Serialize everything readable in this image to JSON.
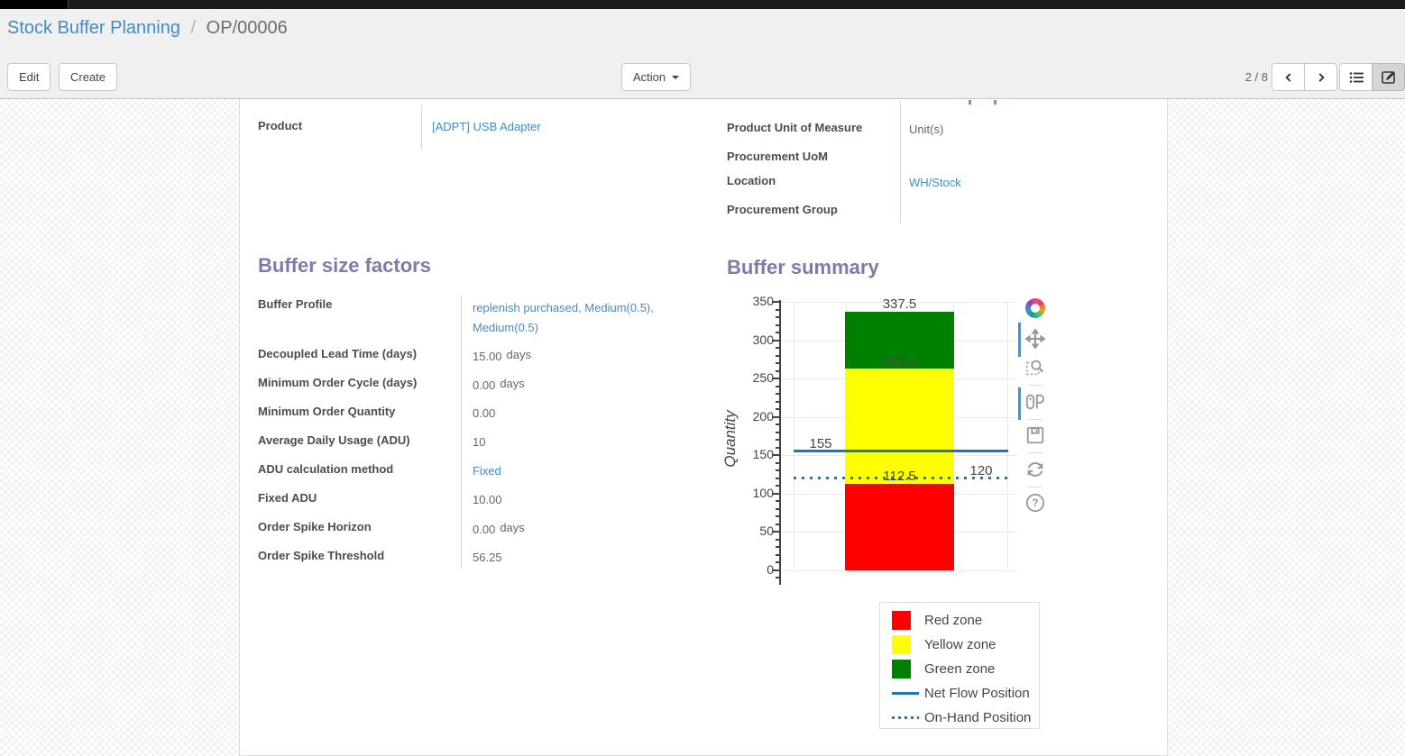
{
  "breadcrumb": {
    "parent": "Stock Buffer Planning",
    "separator": "/",
    "current": "OP/00006"
  },
  "control_panel": {
    "edit_label": "Edit",
    "create_label": "Create",
    "action_label": "Action",
    "pager": "2 / 8"
  },
  "icons": {
    "view_switcher": [
      "list-icon",
      "form-icon"
    ],
    "pager": [
      "chevron-left-icon",
      "chevron-right-icon"
    ],
    "chart_modebar": [
      "plotly-logo-icon",
      "pan-icon",
      "box-zoom-icon",
      "hover-compare-icon",
      "save-icon",
      "reset-axes-icon",
      "help-icon"
    ]
  },
  "form": {
    "left_fields": [
      {
        "label": "Product",
        "value": "[ADPT] USB Adapter"
      }
    ],
    "right_fields": [
      {
        "label": "Product Unit of Measure",
        "value": "Unit(s)"
      },
      {
        "label": "Procurement UoM",
        "value": ""
      },
      {
        "label": "Location",
        "value": "WH/Stock"
      },
      {
        "label": "Procurement Group",
        "value": ""
      }
    ],
    "buffer_factors": {
      "title": "Buffer size factors",
      "fields": [
        {
          "label": "Buffer Profile",
          "value": "replenish purchased, Medium(0.5), Medium(0.5)"
        },
        {
          "label": "Decoupled Lead Time (days)",
          "value": "15.00",
          "suffix": "days"
        },
        {
          "label": "Minimum Order Cycle (days)",
          "value": "0.00",
          "suffix": "days"
        },
        {
          "label": "Minimum Order Quantity",
          "value": "0.00"
        },
        {
          "label": "Average Daily Usage (ADU)",
          "value": "10"
        },
        {
          "label": "ADU calculation method",
          "value": "Fixed"
        },
        {
          "label": "Fixed ADU",
          "value": "10.00"
        },
        {
          "label": "Order Spike Horizon",
          "value": "0.00",
          "suffix": "days"
        },
        {
          "label": "Order Spike Threshold",
          "value": "56.25"
        }
      ]
    },
    "buffer_summary": {
      "title": "Buffer summary"
    }
  },
  "chart_data": {
    "type": "bar",
    "title": "Buffer summary",
    "ylabel": "Quantity",
    "ylim": [
      0,
      350
    ],
    "ytick_step": 50,
    "ytick_labels": [
      "350",
      "300",
      "250",
      "200",
      "150",
      "100",
      "50",
      "0"
    ],
    "grid": true,
    "legend_position": "bottom-right",
    "zones": [
      {
        "name": "Red zone",
        "from": 0,
        "to": 112.5,
        "color": "#ff0000"
      },
      {
        "name": "Yellow zone",
        "from": 112.5,
        "to": 262.5,
        "color": "#ffff00"
      },
      {
        "name": "Green zone",
        "from": 262.5,
        "to": 337.5,
        "color": "#008000"
      }
    ],
    "lines": [
      {
        "name": "Net Flow Position",
        "value": 155,
        "style": "solid",
        "color": "#1f77b4"
      },
      {
        "name": "On-Hand Position",
        "value": 120,
        "style": "dotted",
        "color": "#1f77b4"
      }
    ],
    "annotations": [
      {
        "text": "337.5",
        "value": 337.5,
        "align": "bar",
        "color": "#444444"
      },
      {
        "text": "262.5",
        "value": 262.5,
        "align": "bar",
        "color": "#40553f"
      },
      {
        "text": "112.5",
        "value": 112.5,
        "align": "bar",
        "color": "#444444"
      },
      {
        "text": "155",
        "value": 155,
        "align": "left",
        "color": "#444444"
      },
      {
        "text": "120",
        "value": 120,
        "align": "right",
        "color": "#444444"
      }
    ],
    "legend": [
      {
        "label": "Red zone",
        "swatch": "square",
        "color": "#ff0000"
      },
      {
        "label": "Yellow zone",
        "swatch": "square",
        "color": "#ffff00"
      },
      {
        "label": "Green zone",
        "swatch": "square",
        "color": "#008000"
      },
      {
        "label": "Net Flow Position",
        "swatch": "line",
        "color": "#1f77b4"
      },
      {
        "label": "On-Hand Position",
        "swatch": "dotted",
        "color": "#1f77b4"
      }
    ]
  }
}
